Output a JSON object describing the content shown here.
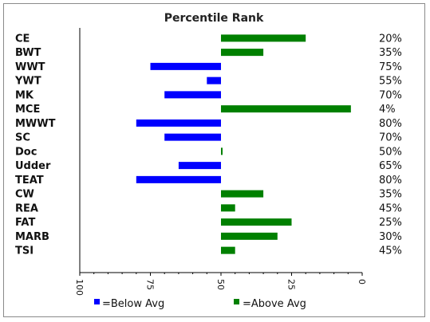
{
  "chart_data": {
    "type": "bar",
    "orientation": "horizontal",
    "title": "Percentile Rank",
    "categories": [
      "CE",
      "BWT",
      "WWT",
      "YWT",
      "MK",
      "MCE",
      "MWWT",
      "SC",
      "Doc",
      "Udder",
      "TEAT",
      "CW",
      "REA",
      "FAT",
      "MARB",
      "TSI"
    ],
    "values": [
      20,
      35,
      75,
      55,
      70,
      4,
      80,
      70,
      50,
      65,
      80,
      35,
      45,
      25,
      30,
      45
    ],
    "labels": [
      "20%",
      "35%",
      "75%",
      "55%",
      "70%",
      "4%",
      "80%",
      "70%",
      "50%",
      "65%",
      "80%",
      "35%",
      "45%",
      "25%",
      "30%",
      "45%"
    ],
    "axis": {
      "reversed": true,
      "range": [
        100,
        0
      ],
      "midline": 50,
      "ticks": [
        "100",
        "75",
        "50",
        "25",
        "0"
      ]
    },
    "grid": false,
    "legend": {
      "placement": "bottom",
      "items": [
        {
          "label": "=Below Avg",
          "color": "#0000ff"
        },
        {
          "label": "=Above Avg",
          "color": "#008000"
        }
      ]
    },
    "colors": {
      "below": "#0000ff",
      "above": "#008000",
      "axis": "#000000"
    }
  }
}
